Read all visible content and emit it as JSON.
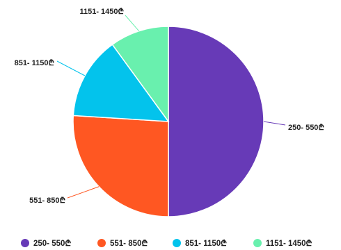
{
  "chart_data": {
    "type": "pie",
    "categories": [
      "250- 550₾",
      "551- 850₾",
      "851- 1150₾",
      "1151- 1450₾"
    ],
    "values": [
      50,
      26,
      14,
      10
    ],
    "colors": [
      "#673ab7",
      "#ff5722",
      "#03c3ec",
      "#69f0ae"
    ],
    "title": "",
    "legend": "bottom"
  }
}
